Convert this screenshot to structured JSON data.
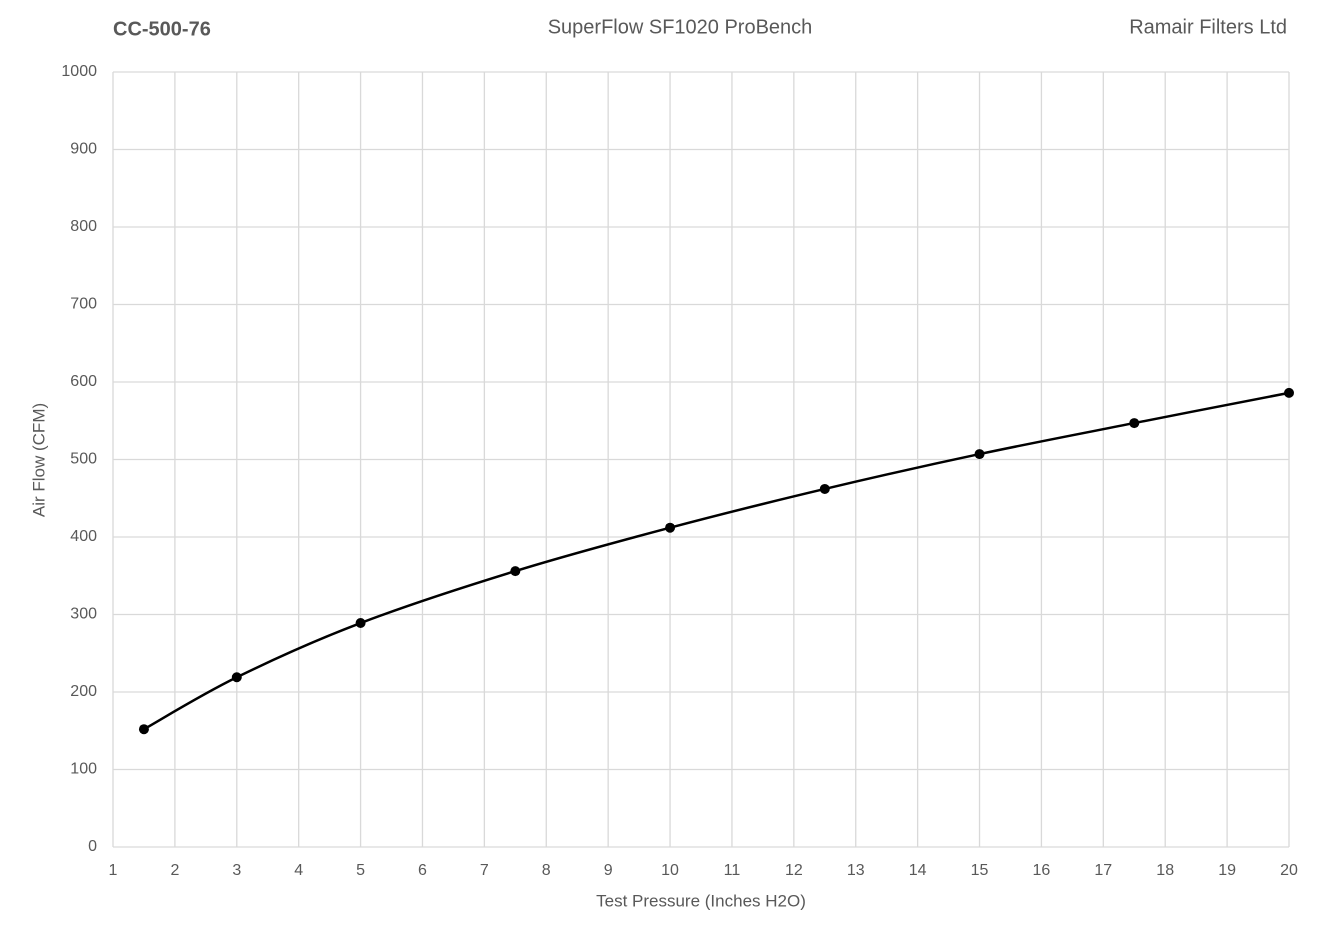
{
  "chart_data": {
    "type": "line",
    "title": "SuperFlow SF1020 ProBench",
    "annotations": [
      "CC-500-76",
      "Ramair Filters Ltd"
    ],
    "x_label": "Test Pressure (Inches H2O)",
    "y_label": "Air Flow (CFM)",
    "x": [
      1.5,
      3,
      5,
      7.5,
      10,
      12.5,
      15,
      17.5,
      20
    ],
    "series": [
      {
        "name": "Air Flow",
        "color": "#000000",
        "values": [
          152,
          219,
          289,
          356,
          412,
          462,
          507,
          547,
          586
        ]
      }
    ],
    "xlim": [
      1,
      20
    ],
    "xticks": [
      1,
      2,
      3,
      4,
      5,
      6,
      7,
      8,
      9,
      10,
      11,
      12,
      13,
      14,
      15,
      16,
      17,
      18,
      19,
      20
    ],
    "ylim": [
      0,
      1000
    ],
    "yticks": [
      0,
      100,
      200,
      300,
      400,
      500,
      600,
      700,
      800,
      900,
      1000
    ],
    "grid": true,
    "smooth": true,
    "markers": true
  }
}
